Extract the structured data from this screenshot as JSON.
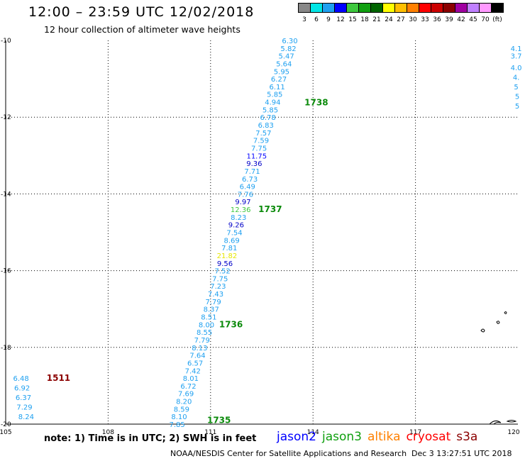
{
  "header": {
    "title": "12:00 – 23:59 UTC 12/02/2018",
    "subtitle": "12 hour collection of altimeter wave heights"
  },
  "colorbar": {
    "labels": [
      "3",
      "6",
      "9",
      "12",
      "15",
      "18",
      "21",
      "24",
      "27",
      "30",
      "33",
      "36",
      "39",
      "42",
      "45",
      "70",
      "(ft)"
    ],
    "colors": [
      "#888888",
      "#00e5e5",
      "#1ea0f0",
      "#0000ff",
      "#3ec83e",
      "#10a010",
      "#006400",
      "#ffff00",
      "#ffbf00",
      "#ff8000",
      "#ff0000",
      "#cc0000",
      "#8b0000",
      "#a000a0",
      "#c080ff",
      "#ff99ff",
      "#000000"
    ]
  },
  "chart_data": {
    "type": "scatter",
    "title": "12:00 – 23:59 UTC 12/02/2018",
    "subtitle": "12 hour collection of altimeter wave heights",
    "x_ticks": [
      "105",
      "108",
      "111",
      "114",
      "117",
      "120"
    ],
    "y_ticks": [
      "-10",
      "-12",
      "-14",
      "-16",
      "-18",
      "-20"
    ],
    "xlim": [
      105,
      120
    ],
    "ylim": [
      -20,
      -10
    ],
    "grid": true,
    "units": "ft",
    "tracks": [
      {
        "pass_labels": [
          {
            "label": "1738",
            "lon": 113.75,
            "lat": -11.62
          },
          {
            "label": "1737",
            "lon": 112.4,
            "lat": -14.4
          },
          {
            "label": "1736",
            "lon": 111.25,
            "lat": -17.4
          },
          {
            "label": "1735",
            "lon": 110.9,
            "lat": -19.9
          }
        ],
        "points": [
          {
            "lon": 113.32,
            "lat": -10.0,
            "swh": "6.30",
            "color": "#1ea0f0"
          },
          {
            "lon": 113.28,
            "lat": -10.2,
            "swh": "5.82",
            "color": "#1ea0f0"
          },
          {
            "lon": 113.22,
            "lat": -10.4,
            "swh": "5.47",
            "color": "#1ea0f0"
          },
          {
            "lon": 113.15,
            "lat": -10.6,
            "swh": "5.64",
            "color": "#1ea0f0"
          },
          {
            "lon": 113.08,
            "lat": -10.8,
            "swh": "5.95",
            "color": "#1ea0f0"
          },
          {
            "lon": 113.0,
            "lat": -11.0,
            "swh": "6.27",
            "color": "#1ea0f0"
          },
          {
            "lon": 112.95,
            "lat": -11.2,
            "swh": "6.11",
            "color": "#1ea0f0"
          },
          {
            "lon": 112.88,
            "lat": -11.4,
            "swh": "5.85",
            "color": "#1ea0f0"
          },
          {
            "lon": 112.82,
            "lat": -11.6,
            "swh": "4.94",
            "color": "#1ea0f0"
          },
          {
            "lon": 112.75,
            "lat": -11.8,
            "swh": "5.85",
            "color": "#1ea0f0"
          },
          {
            "lon": 112.68,
            "lat": -12.0,
            "swh": "6.78",
            "color": "#1ea0f0"
          },
          {
            "lon": 112.62,
            "lat": -12.2,
            "swh": "6.83",
            "color": "#1ea0f0"
          },
          {
            "lon": 112.55,
            "lat": -12.4,
            "swh": "7.57",
            "color": "#1ea0f0"
          },
          {
            "lon": 112.48,
            "lat": -12.6,
            "swh": "7.59",
            "color": "#1ea0f0"
          },
          {
            "lon": 112.42,
            "lat": -12.8,
            "swh": "7.75",
            "color": "#1ea0f0"
          },
          {
            "lon": 112.35,
            "lat": -13.0,
            "swh": "11.75",
            "color": "#0000ff"
          },
          {
            "lon": 112.28,
            "lat": -13.2,
            "swh": "9.36",
            "color": "#0000c8"
          },
          {
            "lon": 112.22,
            "lat": -13.4,
            "swh": "7.71",
            "color": "#1ea0f0"
          },
          {
            "lon": 112.15,
            "lat": -13.6,
            "swh": "6.73",
            "color": "#1ea0f0"
          },
          {
            "lon": 112.08,
            "lat": -13.8,
            "swh": "6.49",
            "color": "#1ea0f0"
          },
          {
            "lon": 112.02,
            "lat": -14.0,
            "swh": "7.76",
            "color": "#1ea0f0"
          },
          {
            "lon": 111.95,
            "lat": -14.2,
            "swh": "9.97",
            "color": "#0000c8"
          },
          {
            "lon": 111.88,
            "lat": -14.4,
            "swh": "12.36",
            "color": "#3ec83e"
          },
          {
            "lon": 111.82,
            "lat": -14.6,
            "swh": "8.23",
            "color": "#1ea0f0"
          },
          {
            "lon": 111.75,
            "lat": -14.8,
            "swh": "9.26",
            "color": "#0000c8"
          },
          {
            "lon": 111.7,
            "lat": -15.0,
            "swh": "7.54",
            "color": "#1ea0f0"
          },
          {
            "lon": 111.62,
            "lat": -15.2,
            "swh": "8.69",
            "color": "#1ea0f0"
          },
          {
            "lon": 111.55,
            "lat": -15.4,
            "swh": "7.81",
            "color": "#1ea0f0"
          },
          {
            "lon": 111.48,
            "lat": -15.6,
            "swh": "21.82",
            "color": "#e6e600"
          },
          {
            "lon": 111.42,
            "lat": -15.8,
            "swh": "9.56",
            "color": "#0000c8"
          },
          {
            "lon": 111.35,
            "lat": -16.0,
            "swh": "7.52",
            "color": "#1ea0f0"
          },
          {
            "lon": 111.28,
            "lat": -16.2,
            "swh": "7.75",
            "color": "#1ea0f0"
          },
          {
            "lon": 111.22,
            "lat": -16.4,
            "swh": "7.23",
            "color": "#1ea0f0"
          },
          {
            "lon": 111.15,
            "lat": -16.6,
            "swh": "7.43",
            "color": "#1ea0f0"
          },
          {
            "lon": 111.08,
            "lat": -16.8,
            "swh": "7.79",
            "color": "#1ea0f0"
          },
          {
            "lon": 111.02,
            "lat": -17.0,
            "swh": "8.37",
            "color": "#1ea0f0"
          },
          {
            "lon": 110.95,
            "lat": -17.2,
            "swh": "8.51",
            "color": "#1ea0f0"
          },
          {
            "lon": 110.88,
            "lat": -17.4,
            "swh": "8.00",
            "color": "#1ea0f0"
          },
          {
            "lon": 110.82,
            "lat": -17.6,
            "swh": "8.55",
            "color": "#1ea0f0"
          },
          {
            "lon": 110.75,
            "lat": -17.8,
            "swh": "7.79",
            "color": "#1ea0f0"
          },
          {
            "lon": 110.68,
            "lat": -18.0,
            "swh": "8.13",
            "color": "#1ea0f0"
          },
          {
            "lon": 110.62,
            "lat": -18.2,
            "swh": "7.64",
            "color": "#1ea0f0"
          },
          {
            "lon": 110.55,
            "lat": -18.4,
            "swh": "6.57",
            "color": "#1ea0f0"
          },
          {
            "lon": 110.48,
            "lat": -18.6,
            "swh": "7.42",
            "color": "#1ea0f0"
          },
          {
            "lon": 110.42,
            "lat": -18.8,
            "swh": "8.01",
            "color": "#1ea0f0"
          },
          {
            "lon": 110.35,
            "lat": -19.0,
            "swh": "6.72",
            "color": "#1ea0f0"
          },
          {
            "lon": 110.28,
            "lat": -19.2,
            "swh": "7.69",
            "color": "#1ea0f0"
          },
          {
            "lon": 110.22,
            "lat": -19.4,
            "swh": "8.20",
            "color": "#1ea0f0"
          },
          {
            "lon": 110.15,
            "lat": -19.6,
            "swh": "8.59",
            "color": "#1ea0f0"
          },
          {
            "lon": 110.08,
            "lat": -19.8,
            "swh": "8.10",
            "color": "#1ea0f0"
          },
          {
            "lon": 110.02,
            "lat": -20.0,
            "swh": "7.85",
            "color": "#1ea0f0"
          }
        ]
      },
      {
        "pass_labels": [
          {
            "label": "1511",
            "lon": 106.2,
            "lat": -18.8
          }
        ],
        "points": [
          {
            "lon": 105.45,
            "lat": -18.8,
            "swh": "6.48",
            "color": "#1ea0f0"
          },
          {
            "lon": 105.48,
            "lat": -19.05,
            "swh": "6.92",
            "color": "#1ea0f0"
          },
          {
            "lon": 105.52,
            "lat": -19.3,
            "swh": "6.37",
            "color": "#1ea0f0"
          },
          {
            "lon": 105.55,
            "lat": -19.55,
            "swh": "7.29",
            "color": "#1ea0f0"
          },
          {
            "lon": 105.6,
            "lat": -19.8,
            "swh": "8.24",
            "color": "#1ea0f0"
          }
        ]
      },
      {
        "pass_labels": [],
        "points": [
          {
            "lon": 119.95,
            "lat": -10.2,
            "swh": "4.1",
            "color": "#1ea0f0"
          },
          {
            "lon": 119.95,
            "lat": -10.4,
            "swh": "3.7",
            "color": "#1ea0f0"
          },
          {
            "lon": 119.95,
            "lat": -10.7,
            "swh": "4.0",
            "color": "#1ea0f0"
          },
          {
            "lon": 119.95,
            "lat": -10.95,
            "swh": "4.",
            "color": "#1ea0f0"
          },
          {
            "lon": 119.95,
            "lat": -11.2,
            "swh": "5",
            "color": "#1ea0f0"
          },
          {
            "lon": 119.98,
            "lat": -11.45,
            "swh": "5",
            "color": "#1ea0f0"
          },
          {
            "lon": 119.98,
            "lat": -11.7,
            "swh": "5",
            "color": "#1ea0f0"
          }
        ]
      }
    ]
  },
  "footer": {
    "note": "note: 1) Time is in UTC; 2) SWH is in feet",
    "legend": [
      {
        "name": "jason2",
        "color": "#0000ff"
      },
      {
        "name": "jason3",
        "color": "#10a010"
      },
      {
        "name": "altika",
        "color": "#ff8000"
      },
      {
        "name": "cryosat",
        "color": "#ff0000"
      },
      {
        "name": "s3a",
        "color": "#8b0000"
      }
    ],
    "credit": "NOAA/NESDIS Center for Satellite Applications and Research",
    "timestamp": "Dec  3 13:27:51 UTC 2018"
  }
}
